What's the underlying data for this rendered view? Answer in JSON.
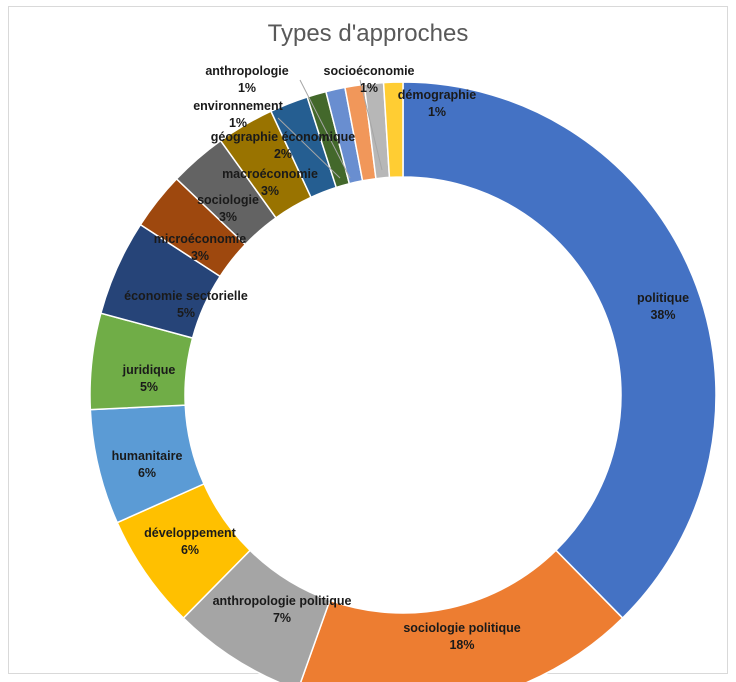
{
  "chart_data": {
    "type": "pie",
    "donut": true,
    "title": "Types d'approches",
    "slices": [
      {
        "name": "politique",
        "value": 38,
        "label": "38%",
        "color": "#4472C4"
      },
      {
        "name": "sociologie politique",
        "value": 18,
        "label": "18%",
        "color": "#ED7D31"
      },
      {
        "name": "anthropologie politique",
        "value": 7,
        "label": "7%",
        "color": "#A5A5A5"
      },
      {
        "name": "développement",
        "value": 6,
        "label": "6%",
        "color": "#FFC000"
      },
      {
        "name": "humanitaire",
        "value": 6,
        "label": "6%",
        "color": "#5B9BD5"
      },
      {
        "name": "juridique",
        "value": 5,
        "label": "5%",
        "color": "#70AD47"
      },
      {
        "name": "économie sectorielle",
        "value": 5,
        "label": "5%",
        "color": "#264478"
      },
      {
        "name": "microéconomie",
        "value": 3,
        "label": "3%",
        "color": "#9E480E"
      },
      {
        "name": "sociologie",
        "value": 3,
        "label": "3%",
        "color": "#636363"
      },
      {
        "name": "macroéconomie",
        "value": 3,
        "label": "3%",
        "color": "#997300"
      },
      {
        "name": "géographie économique",
        "value": 2,
        "label": "2%",
        "color": "#255E91"
      },
      {
        "name": "environnement",
        "value": 1,
        "label": "1%",
        "color": "#43682B"
      },
      {
        "name": "anthropologie",
        "value": 1,
        "label": "1%",
        "color": "#698ED0"
      },
      {
        "name": "",
        "value": 1,
        "label": "",
        "color": "#F1975A"
      },
      {
        "name": "socioéconomie",
        "value": 1,
        "label": "1%",
        "color": "#B7B7B7"
      },
      {
        "name": "démographie",
        "value": 1,
        "label": "1%",
        "color": "#FFCD33"
      }
    ]
  }
}
